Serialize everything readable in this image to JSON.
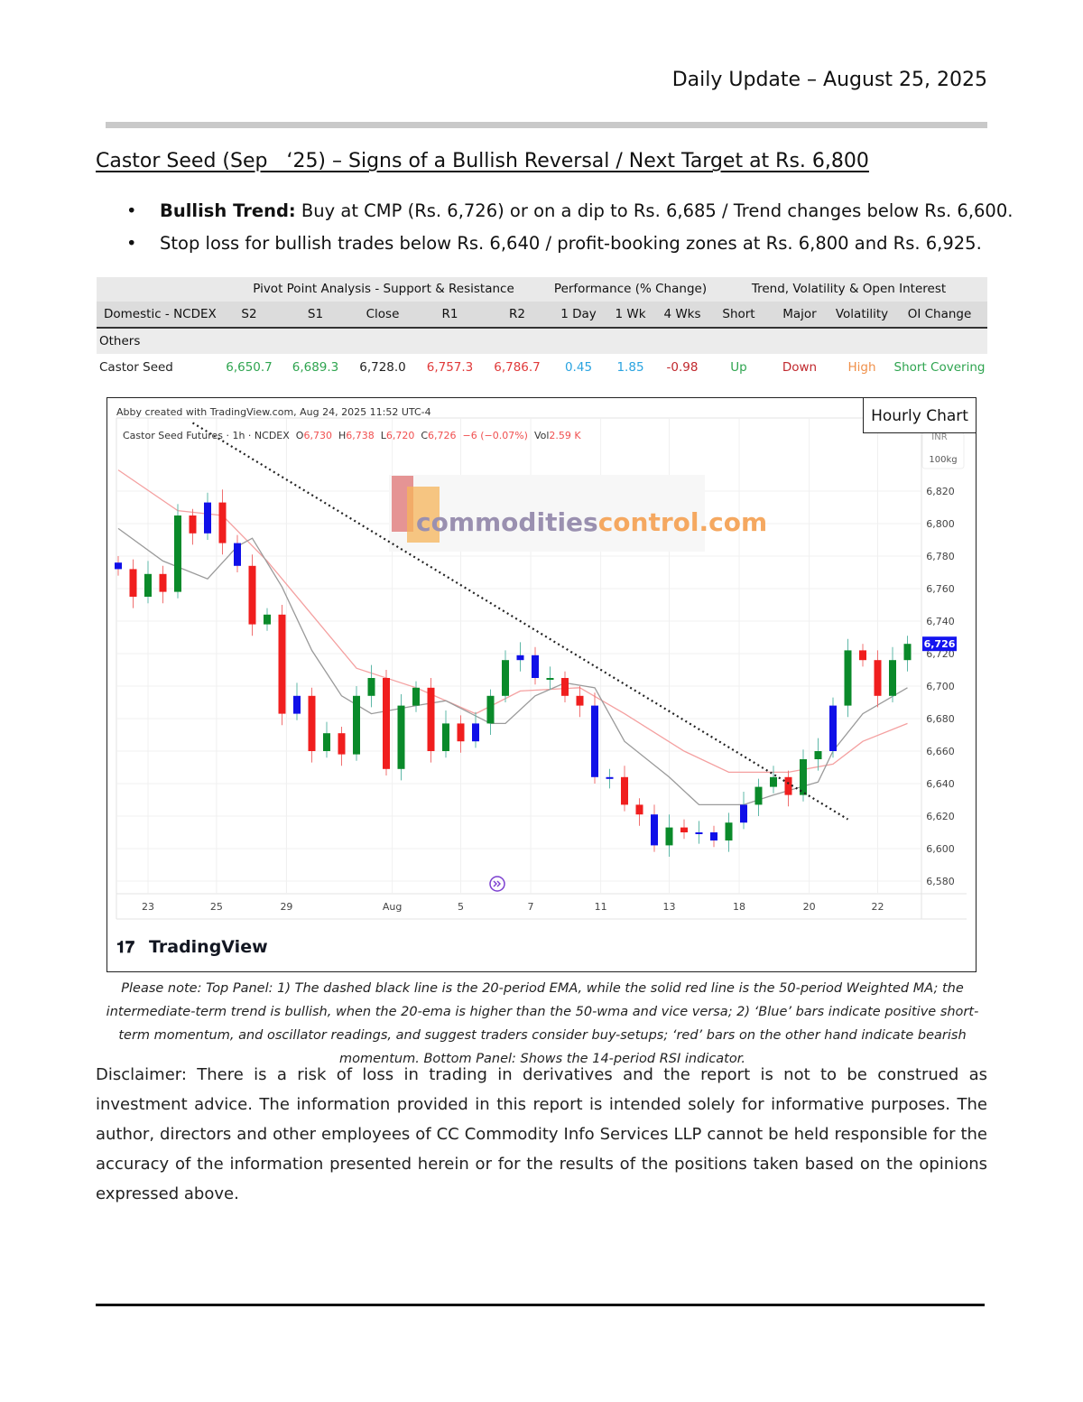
{
  "header": {
    "title": "Daily Update – August 25, 2025"
  },
  "report": {
    "title": "Castor Seed (Sep   ‘25) – Signs of a Bullish Reversal / Next Target at Rs. 6,800",
    "bullets": [
      {
        "bold": "Bullish Trend:",
        "text": " Buy at CMP (Rs. 6,726) or on a dip to Rs. 6,685 / Trend changes below Rs. 6,600."
      },
      {
        "bold": "",
        "text": "Stop loss for bullish trades below Rs. 6,640 / profit-booking zones at Rs. 6,800 and Rs. 6,925."
      }
    ]
  },
  "table": {
    "groups": [
      "",
      "Pivot Point Analysis - Support & Resistance",
      "Performance (% Change)",
      "Trend, Volatility & Open Interest"
    ],
    "columns": [
      "Domestic - NCDEX",
      "S2",
      "S1",
      "Close",
      "R1",
      "R2",
      "1 Day",
      "1 Wk",
      "4 Wks",
      "Short",
      "Major",
      "Volatility",
      "OI Change"
    ],
    "section": "Others",
    "row": [
      {
        "v": "Castor Seed",
        "c": "#222222"
      },
      {
        "v": "6,650.7",
        "c": "#2ea44f"
      },
      {
        "v": "6,689.3",
        "c": "#2ea44f"
      },
      {
        "v": "6,728.0",
        "c": "#222222"
      },
      {
        "v": "6,757.3",
        "c": "#e03a3a"
      },
      {
        "v": "6,786.7",
        "c": "#e03a3a"
      },
      {
        "v": "0.45",
        "c": "#29a3e0"
      },
      {
        "v": "1.85",
        "c": "#29a3e0"
      },
      {
        "v": "-0.98",
        "c": "#c0282d"
      },
      {
        "v": "Up",
        "c": "#2ea44f"
      },
      {
        "v": "Down",
        "c": "#c0282d"
      },
      {
        "v": "High",
        "c": "#f0904a"
      },
      {
        "v": "Short Covering",
        "c": "#2ea44f"
      }
    ]
  },
  "chart": {
    "label": "Hourly Chart",
    "credit": "Abby created with TradingView.com, Aug 24, 2025 11:52 UTC-4",
    "symbol": "Castor Seed Futures · 1h · NCDEX",
    "ohlc": {
      "o_label": "O",
      "o": "6,730",
      "h_label": "H",
      "h": "6,738",
      "l_label": "L",
      "l": "6,720",
      "c_label": "C",
      "c": "6,726",
      "chg": "−6 (−0.07%)",
      "vol_label": "Vol",
      "vol": "2.59 K"
    },
    "unit_top": "INR",
    "unit_bottom": "100kg",
    "current_price": "6,726",
    "watermark": {
      "part1": "commodities",
      "part2": "control.com"
    },
    "logo": "TradingView",
    "colors": {
      "up": "#0a8a2a",
      "down": "#f01e1e",
      "blue": "#1010e8",
      "ema": "#9a9a9a",
      "wma": "#f4a0a0",
      "trend": "#222222",
      "price_tag": "#1414f0"
    }
  },
  "chart_data": {
    "type": "candlestick",
    "y_ticks": [
      6820,
      6800,
      6780,
      6760,
      6740,
      6720,
      6700,
      6680,
      6660,
      6640,
      6620,
      6600,
      6580
    ],
    "y_tick_labels": [
      "6,820",
      "6,800",
      "6,780",
      "6,760",
      "6,740",
      "6,720",
      "6,700",
      "6,680",
      "6,660",
      "6,640",
      "6,620",
      "6,600",
      "6,580"
    ],
    "x_ticks": [
      {
        "bar": 2,
        "label": "23"
      },
      {
        "bar": 6.6,
        "label": "25"
      },
      {
        "bar": 11.3,
        "label": "29"
      },
      {
        "bar": 18.4,
        "label": "Aug"
      },
      {
        "bar": 23,
        "label": "5"
      },
      {
        "bar": 27.7,
        "label": "7"
      },
      {
        "bar": 32.4,
        "label": "11"
      },
      {
        "bar": 37,
        "label": "13"
      },
      {
        "bar": 41.7,
        "label": "18"
      },
      {
        "bar": 46.4,
        "label": "20"
      },
      {
        "bar": 51,
        "label": "22"
      }
    ],
    "close": [
      6772,
      6755,
      6769,
      6758,
      6805,
      6794,
      6813,
      6788,
      6774,
      6738,
      6744,
      6683,
      6694,
      6660,
      6671,
      6658,
      6694,
      6705,
      6649,
      6688,
      6699,
      6660,
      6677,
      6666,
      6677,
      6694,
      6716,
      6719,
      6705,
      6705,
      6694,
      6688,
      6644,
      6644,
      6627,
      6621,
      6602,
      6613,
      6610,
      6610,
      6605,
      6616,
      6627,
      6638,
      6644,
      6633,
      6655,
      6660,
      6688,
      6722,
      6716,
      6694,
      6716,
      6726
    ],
    "ema20": [
      [
        0,
        6797
      ],
      [
        3,
        6777
      ],
      [
        6,
        6766
      ],
      [
        8,
        6786
      ],
      [
        9,
        6791
      ],
      [
        11,
        6761
      ],
      [
        13,
        6722
      ],
      [
        15,
        6694
      ],
      [
        17,
        6683
      ],
      [
        20,
        6688
      ],
      [
        22,
        6691
      ],
      [
        25,
        6677
      ],
      [
        26,
        6677
      ],
      [
        28,
        6694
      ],
      [
        30,
        6702
      ],
      [
        32,
        6699
      ],
      [
        34,
        6666
      ],
      [
        37,
        6644
      ],
      [
        39,
        6627
      ],
      [
        42,
        6627
      ],
      [
        44,
        6633
      ],
      [
        47,
        6641
      ],
      [
        48,
        6660
      ],
      [
        50,
        6683
      ],
      [
        53,
        6699
      ]
    ],
    "wma50": [
      [
        0,
        6833
      ],
      [
        4,
        6808
      ],
      [
        7,
        6805
      ],
      [
        10,
        6777
      ],
      [
        13,
        6744
      ],
      [
        16,
        6711
      ],
      [
        20,
        6699
      ],
      [
        24,
        6683
      ],
      [
        27,
        6697
      ],
      [
        31,
        6699
      ],
      [
        34,
        6683
      ],
      [
        38,
        6660
      ],
      [
        41,
        6647
      ],
      [
        45,
        6647
      ],
      [
        48,
        6652
      ],
      [
        50,
        6666
      ],
      [
        53,
        6677
      ]
    ],
    "trendline": [
      [
        5,
        6862
      ],
      [
        49,
        6618
      ]
    ],
    "ylim": [
      6570,
      6875
    ]
  },
  "note": "Please note: Top Panel: 1) The dashed black line is the 20-period EMA, while the solid red line is the 50-period Weighted MA; the intermediate-term trend is bullish, when the 20-ema is higher than the 50-wma and vice versa; 2)   ‘Blue’   bars indicate positive short-term momentum, and oscillator readings, and suggest traders consider buy-setups;   ‘red’   bars on the other hand indicate bearish momentum. Bottom Panel: Shows the 14-period RSI indicator.",
  "disclaimer": "Disclaimer: There is a risk of loss in trading in derivatives and the report is not to be construed as investment advice. The information provided in this report is intended solely for informative purposes. The author, directors and other employees of CC Commodity Info Services LLP cannot be held responsible for the accuracy of the information presented herein or for the results of the positions taken based on the opinions expressed above."
}
